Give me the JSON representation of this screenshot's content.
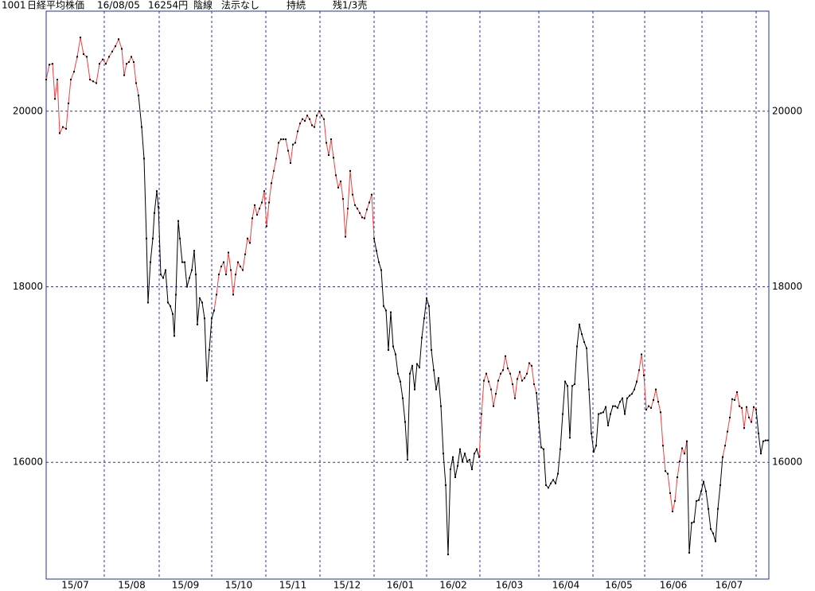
{
  "header": [
    "1001",
    "日経平均株価",
    "16/08/05",
    "16254円",
    "陰線",
    "法示なし",
    "持続",
    "残1/3売"
  ],
  "chart_data": {
    "type": "line",
    "xlim": [
      0,
      908
    ],
    "ylim": [
      14670,
      21140
    ],
    "yticks": [
      16000,
      18000,
      20000
    ],
    "xticks": [
      73,
      142,
      208,
      276,
      344,
      412,
      478,
      545,
      619,
      687,
      752,
      824,
      892
    ],
    "month_labels": [
      "15/07",
      "15/08",
      "15/09",
      "15/10",
      "15/11",
      "15/12",
      "16/01",
      "16/02",
      "16/03",
      "16/04",
      "16/05",
      "16/06",
      "16/07"
    ],
    "grid": true,
    "series": [
      {
        "color": "#f04040",
        "x": [
          0,
          4,
          8,
          11,
          14,
          17,
          21,
          25,
          28,
          31,
          35,
          39,
          43,
          47,
          51,
          55,
          59,
          63,
          67,
          71,
          75,
          79,
          83,
          87,
          91,
          95,
          98,
          101,
          104,
          107,
          110,
          113,
          116
        ],
        "values": [
          20360,
          20530,
          20540,
          20140,
          20360,
          19750,
          19820,
          19800,
          20090,
          20360,
          20450,
          20620,
          20840,
          20650,
          20620,
          20360,
          20340,
          20320,
          20540,
          20590,
          20540,
          20620,
          20680,
          20740,
          20820,
          20710,
          20410,
          20540,
          20560,
          20620,
          20560,
          20320,
          20180
        ]
      },
      {
        "color": "#000000",
        "x": [
          116,
          120,
          123,
          126,
          128,
          131,
          134,
          136,
          139,
          141,
          144,
          147,
          150,
          153,
          156,
          159,
          161,
          163,
          166,
          168,
          171,
          174,
          177,
          180,
          183,
          186,
          188,
          190,
          193,
          196,
          199,
          202,
          205,
          208,
          211
        ],
        "values": [
          20180,
          19820,
          19460,
          18550,
          17820,
          18280,
          18550,
          18840,
          19090,
          18910,
          18140,
          18100,
          18190,
          17820,
          17780,
          17690,
          17440,
          17910,
          18750,
          18550,
          18280,
          18280,
          18000,
          18100,
          18190,
          18410,
          18140,
          17570,
          17870,
          17820,
          17640,
          16930,
          17280,
          17640,
          17730
        ]
      },
      {
        "color": "#f04040",
        "x": [
          211,
          214,
          217,
          220,
          223,
          226,
          229,
          232,
          235,
          238,
          241,
          244,
          247,
          250,
          253,
          256,
          259,
          262,
          265,
          268,
          271,
          274,
          277,
          280,
          283,
          286,
          289,
          292,
          295,
          298,
          301,
          304,
          307,
          310,
          313,
          316,
          319,
          322,
          325,
          328,
          331,
          334,
          337,
          340,
          343,
          346,
          349,
          352,
          355,
          358,
          361,
          364,
          367,
          370,
          373,
          376,
          379,
          382,
          385,
          388,
          391,
          394,
          397,
          400,
          403,
          406,
          409,
          412
        ],
        "values": [
          17730,
          17910,
          18140,
          18230,
          18280,
          18140,
          18390,
          18190,
          17910,
          18140,
          18280,
          18230,
          18190,
          18370,
          18550,
          18500,
          18780,
          18930,
          18820,
          18890,
          18960,
          19090,
          18690,
          18960,
          19180,
          19320,
          19460,
          19640,
          19680,
          19680,
          19680,
          19550,
          19410,
          19620,
          19640,
          19770,
          19860,
          19910,
          19890,
          19950,
          19910,
          19840,
          19820,
          19950,
          20000,
          19950,
          19910,
          19640,
          19500,
          19680,
          19470,
          19270,
          19130,
          19200,
          19000,
          18570,
          18890,
          19320,
          19050,
          18930,
          18890,
          18840,
          18790,
          18780,
          18880,
          18960,
          19050,
          18550
        ]
      },
      {
        "color": "#000000",
        "x": [
          412,
          415,
          418,
          421,
          424,
          427,
          430,
          433,
          436,
          439,
          442,
          445,
          448,
          451,
          454,
          457,
          460,
          463,
          466,
          469,
          472,
          475,
          478,
          481,
          484,
          487,
          490,
          493,
          496,
          499,
          502,
          505,
          508,
          511,
          514,
          517,
          520,
          523,
          526,
          529,
          532,
          535,
          538,
          541,
          544
        ],
        "values": [
          18550,
          18410,
          18280,
          18190,
          17780,
          17730,
          17280,
          17710,
          17320,
          17230,
          17010,
          16920,
          16730,
          16460,
          16030,
          17010,
          17100,
          16830,
          17120,
          17080,
          17420,
          17640,
          17870,
          17780,
          17280,
          17050,
          16830,
          16960,
          16640,
          16100,
          15740,
          14950,
          15920,
          16060,
          15830,
          15960,
          16150,
          16010,
          16100,
          16010,
          16030,
          15920,
          16100,
          16150,
          16060
        ]
      },
      {
        "color": "#f04040",
        "x": [
          544,
          547,
          550,
          553,
          556,
          559,
          562,
          565,
          568,
          571,
          574,
          577,
          580,
          583,
          586,
          589,
          592,
          595,
          598,
          601,
          604,
          607,
          610,
          613,
          616
        ],
        "values": [
          16060,
          16550,
          16930,
          17010,
          16920,
          16830,
          16640,
          16780,
          16930,
          17010,
          17050,
          17210,
          17070,
          17010,
          16890,
          16730,
          16950,
          17030,
          16930,
          16960,
          17010,
          17130,
          17100,
          16890,
          16790
        ]
      },
      {
        "color": "#000000",
        "x": [
          616,
          619,
          622,
          625,
          628,
          631,
          634,
          637,
          640,
          643,
          646,
          649,
          652,
          655,
          658,
          661,
          664,
          667,
          670,
          673,
          676,
          679,
          682,
          685,
          688,
          691,
          694,
          697,
          700,
          703,
          706,
          709,
          712,
          715,
          718,
          721,
          724,
          727,
          730,
          733,
          736,
          739,
          742
        ],
        "values": [
          16790,
          16460,
          16170,
          16150,
          15740,
          15710,
          15760,
          15800,
          15760,
          15870,
          16150,
          16550,
          16920,
          16870,
          16280,
          16870,
          16890,
          17320,
          17570,
          17460,
          17370,
          17300,
          16830,
          16330,
          16120,
          16190,
          16550,
          16560,
          16570,
          16630,
          16420,
          16550,
          16640,
          16640,
          16620,
          16690,
          16730,
          16550,
          16730,
          16760,
          16780,
          16830,
          16920
        ]
      },
      {
        "color": "#f04040",
        "x": [
          742,
          745,
          748,
          751,
          754,
          757,
          760,
          763,
          766,
          769,
          772,
          775,
          778,
          781,
          784,
          787,
          790,
          793,
          796,
          799,
          802,
          805
        ],
        "values": [
          16920,
          17050,
          17230,
          16990,
          16600,
          16640,
          16620,
          16710,
          16830,
          16690,
          16570,
          16190,
          15900,
          15870,
          15650,
          15440,
          15560,
          15830,
          16010,
          16160,
          16100,
          16240
        ]
      },
      {
        "color": "#000000",
        "x": [
          805,
          808,
          811,
          814,
          817,
          820,
          823,
          826,
          829,
          832,
          835,
          838,
          841,
          844,
          847,
          850
        ],
        "values": [
          16240,
          14970,
          15310,
          15320,
          15560,
          15570,
          15670,
          15780,
          15670,
          15470,
          15240,
          15190,
          15100,
          15470,
          15740,
          16060
        ]
      },
      {
        "color": "#f04040",
        "x": [
          850,
          853,
          856,
          859,
          862,
          865,
          868,
          871,
          874,
          877,
          880,
          883,
          886,
          889,
          892
        ],
        "values": [
          16060,
          16190,
          16350,
          16510,
          16720,
          16710,
          16800,
          16640,
          16620,
          16390,
          16630,
          16510,
          16460,
          16630,
          16600
        ]
      },
      {
        "color": "#000000",
        "x": [
          892,
          895,
          898,
          901,
          904,
          907
        ],
        "values": [
          16600,
          16330,
          16100,
          16240,
          16250,
          16250
        ]
      }
    ]
  }
}
